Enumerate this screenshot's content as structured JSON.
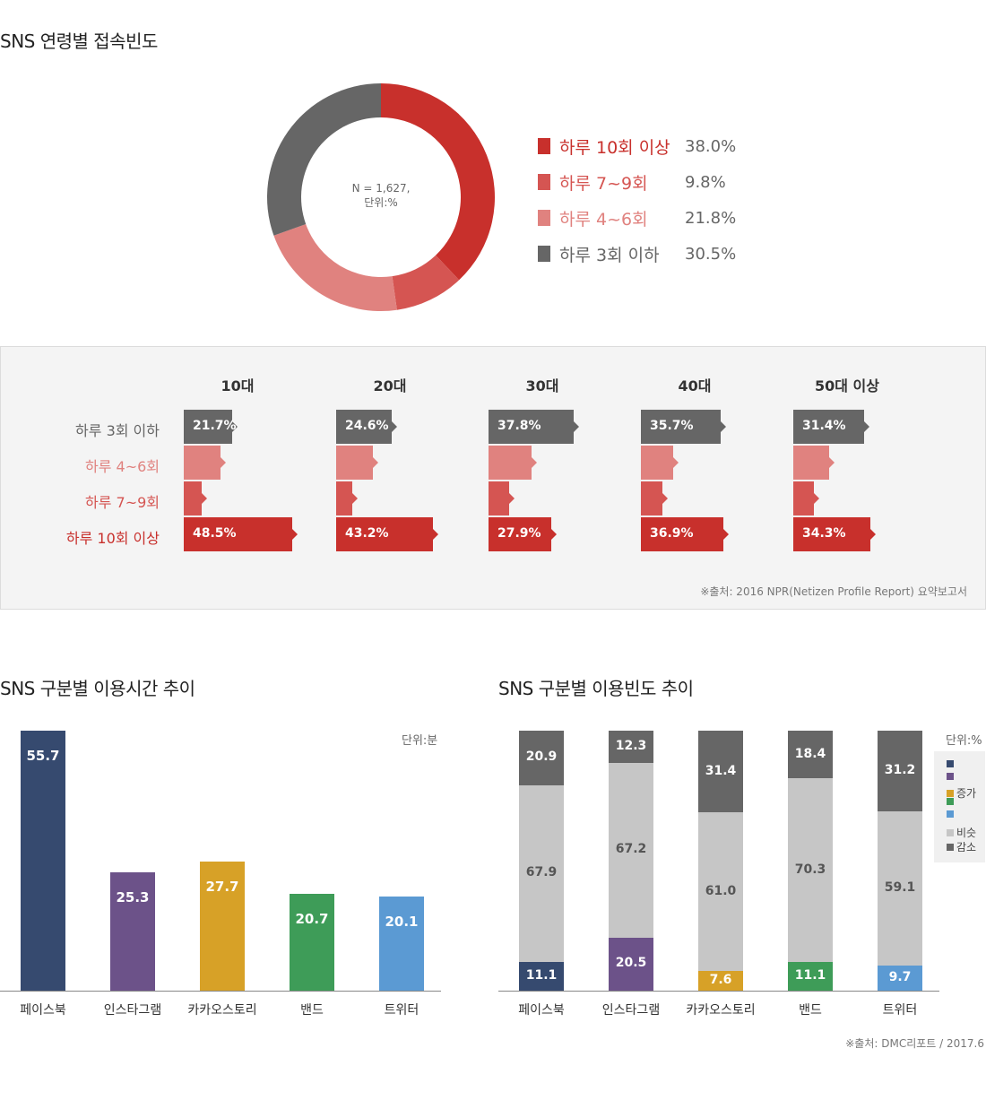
{
  "top": {
    "title": "SNS 연령별 접속빈도",
    "donut_note": "N = 1,627,",
    "donut_unit": "단위:%",
    "panel_source": "※출처: 2016 NPR(Netizen Profile Report) 요약보고서"
  },
  "bottom": {
    "left_title": "SNS 구분별 이용시간 추이",
    "left_unit": "단위:분",
    "right_title": "SNS 구분별 이용빈도 추이",
    "right_unit": "단위:%",
    "source": "※출처: DMC리포트 / 2017.6"
  },
  "colors": {
    "red": "#c8302c",
    "mid_red": "#d55552",
    "light_red": "#e0827f",
    "gray": "#666666"
  },
  "chart_data": [
    {
      "type": "pie",
      "title": "SNS 연령별 접속빈도",
      "labels": [
        "하루 10회 이상",
        "하루 7~9회",
        "하루 4~6회",
        "하루 3회 이하"
      ],
      "values": [
        38.0,
        9.8,
        21.8,
        30.5
      ],
      "value_labels": [
        "38.0%",
        "9.8%",
        "21.8%",
        "30.5%"
      ],
      "colors": [
        "#c8302c",
        "#d55552",
        "#e0827f",
        "#666666"
      ],
      "legend_position": "right"
    },
    {
      "type": "bar",
      "orientation": "horizontal",
      "categories": [
        "10대",
        "20대",
        "30대",
        "40대",
        "50대 이상"
      ],
      "series": [
        {
          "name": "하루 3회 이하",
          "values": [
            21.7,
            24.6,
            37.8,
            35.7,
            31.4
          ],
          "labels": [
            "21.7%",
            "24.6%",
            "37.8%",
            "35.7%",
            "31.4%"
          ],
          "color": "#666666",
          "label_color": "#666666"
        },
        {
          "name": "하루 4~6회",
          "values": [
            16.5,
            16.5,
            19.0,
            14.5,
            16.0
          ],
          "labels": [
            "",
            "",
            "",
            "",
            ""
          ],
          "color": "#e0827f",
          "label_color": "#e0827f"
        },
        {
          "name": "하루 7~9회",
          "values": [
            8.0,
            7.0,
            9.0,
            9.5,
            9.0
          ],
          "labels": [
            "",
            "",
            "",
            "",
            ""
          ],
          "color": "#d55552",
          "label_color": "#d55552"
        },
        {
          "name": "하루 10회 이상",
          "values": [
            48.5,
            43.2,
            27.9,
            36.9,
            34.3
          ],
          "labels": [
            "48.5%",
            "43.2%",
            "27.9%",
            "36.9%",
            "34.3%"
          ],
          "color": "#c8302c",
          "label_color": "#c8302c"
        }
      ]
    },
    {
      "type": "bar",
      "title": "SNS 구분별 이용시간 추이",
      "categories": [
        "페이스북",
        "인스타그램",
        "카카오스토리",
        "밴드",
        "트위터"
      ],
      "values": [
        55.7,
        25.3,
        27.7,
        20.7,
        20.1
      ],
      "value_labels": [
        "55.7",
        "25.3",
        "27.7",
        "20.7",
        "20.1"
      ],
      "colors": [
        "#364a6f",
        "#6c5289",
        "#d7a127",
        "#3e9c58",
        "#5b9ad3"
      ],
      "ylim": [
        0,
        55.7
      ]
    },
    {
      "type": "bar",
      "stacked": true,
      "title": "SNS 구분별 이용빈도 추이",
      "categories": [
        "페이스북",
        "인스타그램",
        "카카오스토리",
        "밴드",
        "트위터"
      ],
      "series": [
        {
          "name": "증가",
          "values": [
            11.1,
            20.5,
            7.6,
            11.1,
            9.7
          ],
          "labels": [
            "11.1",
            "20.5",
            "7.6",
            "11.1",
            "9.7"
          ],
          "colors": [
            "#364a6f",
            "#6c5289",
            "#d7a127",
            "#3e9c58",
            "#5b9ad3"
          ]
        },
        {
          "name": "비슷",
          "values": [
            67.9,
            67.2,
            61.0,
            70.3,
            59.1
          ],
          "labels": [
            "67.9",
            "67.2",
            "61.0",
            "70.3",
            "59.1"
          ],
          "color": "#c6c6c6"
        },
        {
          "name": "감소",
          "values": [
            20.9,
            12.3,
            31.4,
            18.4,
            31.2
          ],
          "labels": [
            "20.9",
            "12.3",
            "31.4",
            "18.4",
            "31.2"
          ],
          "color": "#666666"
        }
      ],
      "legend_position": "right",
      "legend_swatches": [
        "#364a6f",
        "#6c5289",
        "#d7a127",
        "#3e9c58",
        "#5b9ad3",
        "#c6c6c6",
        "#666666"
      ]
    }
  ]
}
